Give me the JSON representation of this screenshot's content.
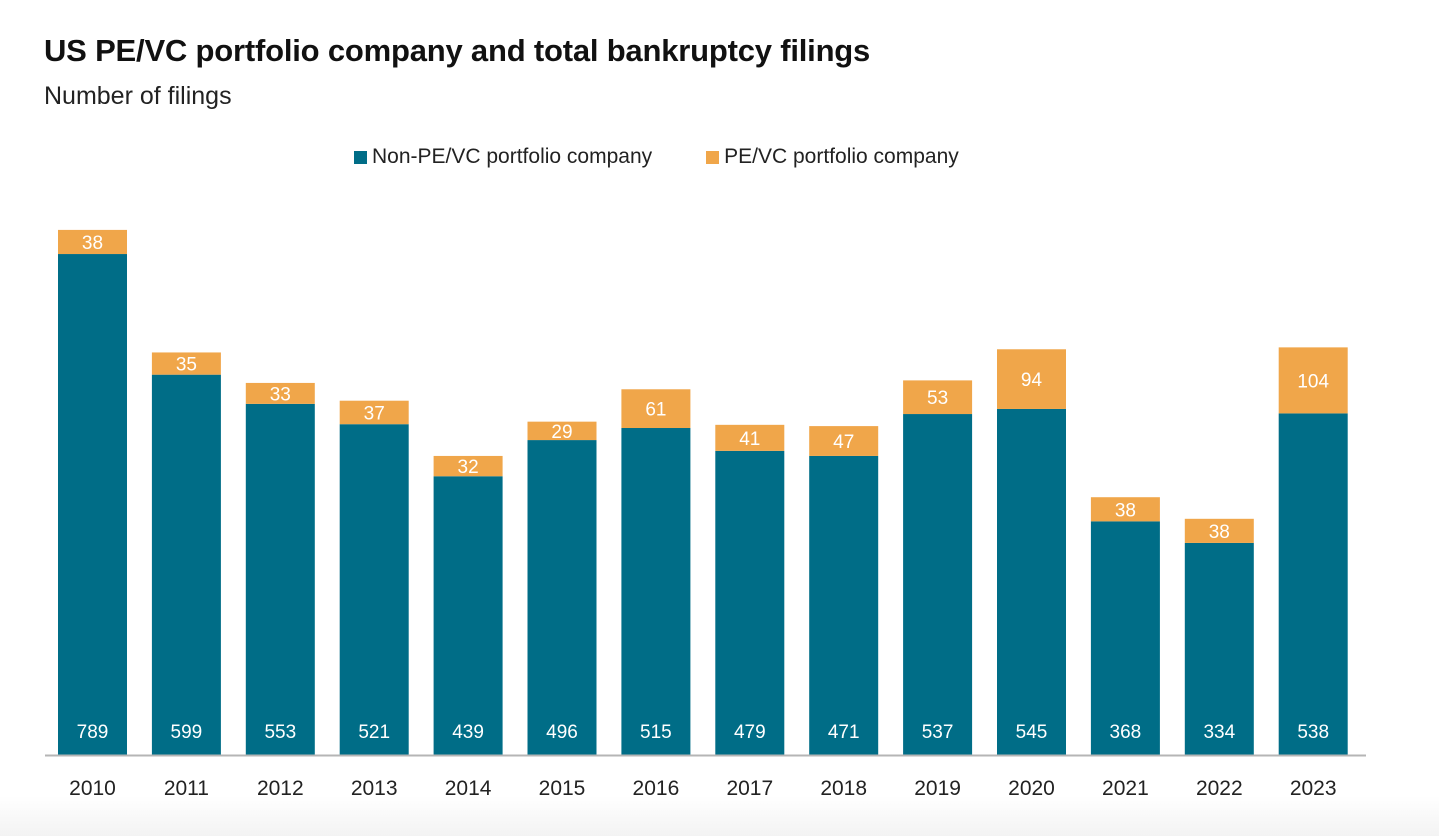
{
  "colors": {
    "non_pe": "#006d87",
    "pe": "#f0a64a",
    "axis": "#b5b5b5"
  },
  "chart_data": {
    "type": "bar",
    "stacked": true,
    "title": "US PE/VC portfolio company and total bankruptcy filings",
    "subtitle": "Number of filings",
    "xlabel": "",
    "ylabel": "",
    "ylim": [
      0,
      830
    ],
    "grid": false,
    "legend_position": "top-center",
    "categories": [
      "2010",
      "2011",
      "2012",
      "2013",
      "2014",
      "2015",
      "2016",
      "2017",
      "2018",
      "2019",
      "2020",
      "2021",
      "2022",
      "2023"
    ],
    "series": [
      {
        "name": "Non-PE/VC portfolio company",
        "color_key": "non_pe",
        "values": [
          789,
          599,
          553,
          521,
          439,
          496,
          515,
          479,
          471,
          537,
          545,
          368,
          334,
          538
        ]
      },
      {
        "name": "PE/VC portfolio company",
        "color_key": "pe",
        "values": [
          38,
          35,
          33,
          37,
          32,
          29,
          61,
          41,
          47,
          53,
          94,
          38,
          38,
          104
        ]
      }
    ]
  }
}
